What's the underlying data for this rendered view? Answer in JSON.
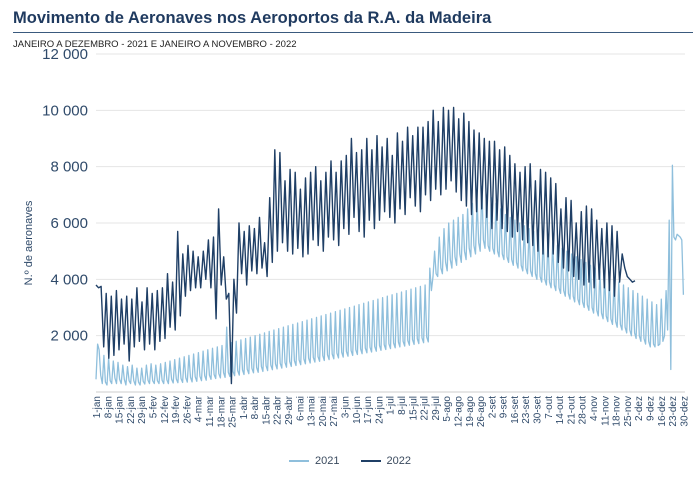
{
  "title": "Movimento de Aeronaves nos Aeroportos da R.A. da Madeira",
  "subtitle": "JANEIRO A DEZEMBRO - 2021 E JANEIRO A NOVEMBRO - 2022",
  "colors": {
    "title": "#1f3a5f",
    "series_2021": "#8fbfdc",
    "series_2022": "#1f3f66"
  },
  "chart_data": {
    "type": "line",
    "title": "Movimento de Aeronaves nos Aeroportos da R.A. da Madeira",
    "subtitle": "JANEIRO A DEZEMBRO - 2021 E JANEIRO A NOVEMBRO - 2022",
    "ylabel": "N.º de aeronaves",
    "xlabel": "",
    "ylim": [
      0,
      12000
    ],
    "yticks": [
      2000,
      4000,
      6000,
      8000,
      10000,
      12000
    ],
    "ytick_labels": [
      "2 000",
      "4 000",
      "6 000",
      "8 000",
      "10 000",
      "12 000"
    ],
    "x_tick_labels": [
      "1-jan",
      "8-jan",
      "15-jan",
      "22-jan",
      "29-jan",
      "5-fev",
      "12-fev",
      "19-fev",
      "26-fev",
      "4-mar",
      "11-mar",
      "18-mar",
      "25-mar",
      "1-abr",
      "8-abr",
      "15-abr",
      "22-abr",
      "29-abr",
      "6-mai",
      "13-mai",
      "20-mai",
      "27-mai",
      "3-jun",
      "10-jun",
      "17-jun",
      "24-jun",
      "1-jul",
      "8-jul",
      "15-jul",
      "22-jul",
      "29-jul",
      "5-ago",
      "12-ago",
      "19-ago",
      "26-ago",
      "2-set",
      "9-set",
      "16-set",
      "23-set",
      "30-set",
      "7-out",
      "14-out",
      "21-out",
      "28-out",
      "4-nov",
      "11-nov",
      "18-nov",
      "25-nov",
      "2-dez",
      "9-dez",
      "16-dez",
      "23-dez",
      "30-dez"
    ],
    "grid": true,
    "legend_position": "bottom",
    "series": [
      {
        "name": "2021",
        "values": [
          450,
          1700,
          1500,
          600,
          300,
          1300,
          350,
          250,
          1200,
          400,
          300,
          1100,
          500,
          300,
          1050,
          450,
          300,
          950,
          450,
          250,
          900,
          400,
          300,
          950,
          400,
          250,
          850,
          350,
          250,
          850,
          380,
          280,
          950,
          420,
          300,
          1000,
          400,
          300,
          950,
          400,
          300,
          1000,
          420,
          300,
          1050,
          430,
          300,
          1100,
          450,
          320,
          1150,
          460,
          330,
          1200,
          480,
          340,
          1250,
          500,
          350,
          1300,
          520,
          360,
          1350,
          540,
          380,
          1400,
          560,
          400,
          1450,
          580,
          420,
          1500,
          600,
          450,
          1550,
          620,
          480,
          1600,
          650,
          500,
          1650,
          680,
          520,
          2300,
          700,
          550,
          1750,
          730,
          580,
          1800,
          760,
          600,
          1850,
          780,
          620,
          1900,
          810,
          650,
          1950,
          840,
          680,
          2000,
          870,
          700,
          2050,
          900,
          730,
          2100,
          930,
          760,
          2150,
          960,
          790,
          2200,
          990,
          820,
          2250,
          1020,
          850,
          2300,
          1050,
          880,
          2350,
          1080,
          910,
          2400,
          1110,
          940,
          2450,
          1140,
          970,
          2500,
          1170,
          1000,
          2550,
          1200,
          1030,
          2600,
          1230,
          1060,
          2650,
          1260,
          1090,
          2700,
          1290,
          1120,
          2750,
          1320,
          1150,
          2800,
          1350,
          1180,
          2850,
          1380,
          1210,
          2900,
          1410,
          1240,
          2950,
          1440,
          1270,
          3000,
          1470,
          1300,
          3050,
          1500,
          1330,
          3100,
          1530,
          1360,
          3150,
          1560,
          1390,
          3200,
          1590,
          1420,
          3250,
          1620,
          1450,
          3300,
          1650,
          1480,
          3350,
          1680,
          1510,
          3400,
          1710,
          1540,
          3450,
          1740,
          1570,
          3500,
          1770,
          1600,
          3550,
          1800,
          1630,
          3600,
          1830,
          1660,
          3650,
          1860,
          1690,
          3700,
          1890,
          1720,
          3750,
          1920,
          1750,
          3800,
          1950,
          1780,
          4400,
          3600,
          4100,
          5000,
          4200,
          4100,
          5500,
          4400,
          4200,
          5800,
          4600,
          4300,
          6000,
          4700,
          4400,
          6100,
          4800,
          4500,
          6200,
          4900,
          4600,
          6300,
          5000,
          4700,
          6500,
          5100,
          4800,
          6700,
          5200,
          4900,
          6800,
          5300,
          5000,
          7300,
          5400,
          5100,
          7000,
          5200,
          5000,
          6900,
          5100,
          4900,
          6700,
          5000,
          4800,
          6500,
          4900,
          4700,
          6300,
          4800,
          4600,
          6200,
          4700,
          4500,
          6100,
          4600,
          4400,
          6000,
          4500,
          4300,
          5900,
          4400,
          4200,
          5800,
          4300,
          4100,
          5700,
          4200,
          4000,
          5600,
          4100,
          3900,
          5500,
          4000,
          3800,
          5400,
          3900,
          3700,
          5300,
          3800,
          3600,
          5200,
          3700,
          3500,
          5100,
          3600,
          3400,
          5000,
          3500,
          3300,
          4900,
          3400,
          3200,
          4800,
          3300,
          3100,
          4700,
          3200,
          3000,
          4600,
          3100,
          2900,
          4500,
          3000,
          2800,
          4400,
          2900,
          2700,
          4300,
          2800,
          2600,
          4200,
          2700,
          2500,
          4100,
          2600,
          2400,
          4000,
          2500,
          2300,
          3900,
          2400,
          2200,
          3800,
          2300,
          2100,
          3700,
          2200,
          2000,
          3600,
          2100,
          1900,
          3500,
          2000,
          1800,
          3400,
          1900,
          1700,
          3300,
          1800,
          1600,
          3200,
          1700,
          1600,
          3100,
          1650,
          1700,
          3300,
          1800,
          2000,
          3600,
          2200,
          6100,
          800,
          8050,
          5500,
          5400,
          5600,
          5550,
          5500,
          5400,
          3450
        ]
      },
      {
        "name": "2022",
        "values": [
          3800,
          3700,
          3750,
          1600,
          3500,
          1200,
          3400,
          1300,
          3600,
          1500,
          3300,
          1700,
          3400,
          1100,
          3300,
          1600,
          3700,
          1800,
          3200,
          1500,
          3700,
          1700,
          3500,
          1500,
          3600,
          1800,
          3700,
          1900,
          4200,
          2300,
          3900,
          2200,
          5700,
          2700,
          4900,
          3400,
          5200,
          3600,
          5000,
          3700,
          4800,
          3700,
          5000,
          4000,
          5400,
          3700,
          5500,
          2600,
          6500,
          3800,
          4800,
          3300,
          3500,
          300,
          4000,
          2800,
          6000,
          4200,
          5700,
          3800,
          5900,
          4300,
          5800,
          4200,
          6200,
          4400,
          5300,
          4100,
          6900,
          4600,
          8600,
          5000,
          8500,
          5300,
          7500,
          5000,
          7900,
          4900,
          7800,
          5100,
          7200,
          4800,
          7600,
          4900,
          7800,
          5400,
          8000,
          5200,
          7500,
          5000,
          7800,
          5500,
          8200,
          5400,
          7800,
          5200,
          8200,
          5800,
          8400,
          5600,
          9000,
          6200,
          8500,
          5700,
          8600,
          5500,
          9000,
          6100,
          8600,
          5800,
          9100,
          6100,
          8700,
          6400,
          9000,
          6200,
          8400,
          6000,
          9200,
          6500,
          8900,
          6300,
          9400,
          6900,
          9100,
          6600,
          9400,
          6400,
          9400,
          7000,
          9600,
          6800,
          10000,
          7200,
          9600,
          7000,
          10100,
          7200,
          10000,
          7500,
          10100,
          7100,
          9700,
          6800,
          9900,
          6600,
          9600,
          6300,
          9300,
          6400,
          9200,
          6500,
          9000,
          6200,
          8900,
          5800,
          8900,
          6100,
          8600,
          5800,
          8700,
          5700,
          8400,
          5500,
          8100,
          5700,
          7800,
          5400,
          8000,
          5300,
          8100,
          5200,
          7500,
          5000,
          7900,
          4900,
          7800,
          4800,
          7600,
          4900,
          7400,
          4600,
          6500,
          4400,
          6900,
          4300,
          6800,
          4100,
          6000,
          4000,
          6400,
          3800,
          6600,
          3900,
          6500,
          3700,
          6100,
          4000,
          5800,
          3700,
          6000,
          3600,
          5900,
          3400,
          5700,
          3900,
          4900,
          4400,
          4100,
          4000,
          3900,
          3950
        ]
      }
    ]
  },
  "legend": [
    {
      "label": "2021",
      "color": "#8fbfdc"
    },
    {
      "label": "2022",
      "color": "#1f3f66"
    }
  ]
}
